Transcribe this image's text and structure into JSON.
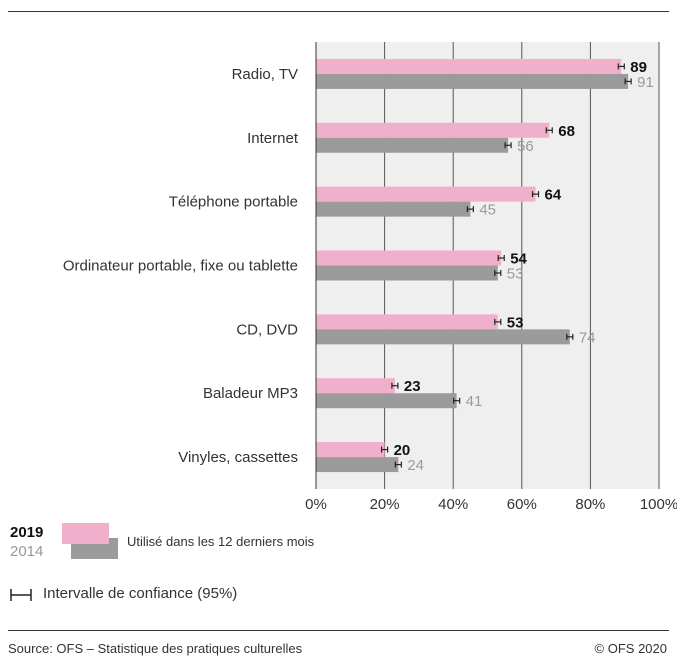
{
  "chart_data": {
    "type": "bar",
    "orientation": "horizontal",
    "categories": [
      "Radio, TV",
      "Internet",
      "Téléphone portable",
      "Ordinateur portable, fixe ou tablette",
      "CD, DVD",
      "Baladeur MP3",
      "Vinyles, cassettes"
    ],
    "series": [
      {
        "name": "2019",
        "values": [
          89,
          68,
          64,
          54,
          53,
          23,
          20
        ],
        "color": "#f0b0cc",
        "label_color": "#111111"
      },
      {
        "name": "2014",
        "values": [
          91,
          56,
          45,
          53,
          74,
          41,
          24
        ],
        "color": "#9b9b9b",
        "label_color": "#9a9a9a"
      }
    ],
    "xlim": [
      0,
      100
    ],
    "x_ticks": [
      0,
      20,
      40,
      60,
      80,
      100
    ],
    "x_tick_labels": [
      "0%",
      "20%",
      "40%",
      "60%",
      "80%",
      "100%"
    ],
    "grid": true,
    "error_bars": "confidence interval (95%)"
  },
  "legend": {
    "year_2019": "2019",
    "year_2014": "2014",
    "description": "Utilisé dans les 12 derniers mois",
    "ci_label": "Intervalle de confiance (95%)"
  },
  "footer": {
    "source": "Source: OFS – Statistique des pratiques culturelles",
    "copyright": "© OFS 2020"
  },
  "colors": {
    "plot_background": "#efefef",
    "gridline": "#555555",
    "bar_2019": "#f0b0cc",
    "bar_2014": "#9b9b9b"
  }
}
